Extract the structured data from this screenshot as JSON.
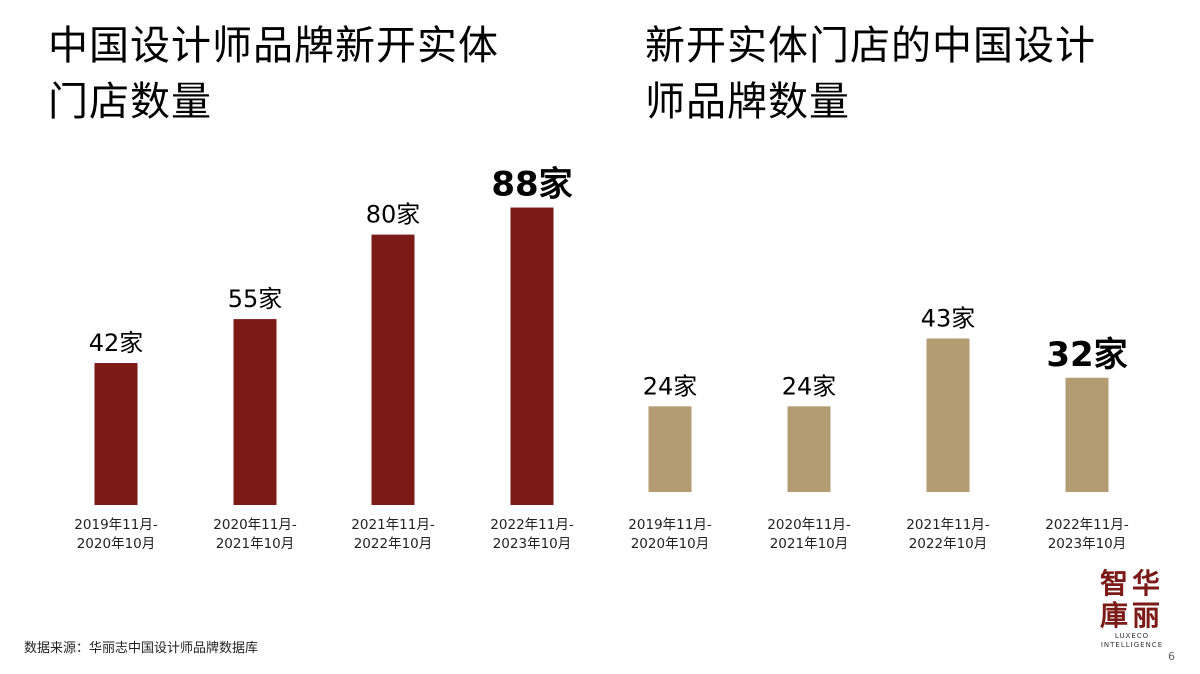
{
  "source_text": "数据来源：华丽志中国设计师品牌数据库",
  "logo": {
    "cn_line1": "智华",
    "cn_line2": "庫丽",
    "en_line1": "LUXECO",
    "en_line2": "INTELLIGENCE"
  },
  "page_number": "6",
  "chart_data": [
    {
      "type": "bar",
      "title": "中国设计师品牌新开实体门店数量",
      "title_lines": [
        "中国设计师品牌新开实体",
        "门店数量"
      ],
      "categories": [
        "2019年11月-\n2020年10月",
        "2020年11月-\n2021年10月",
        "2021年11月-\n2022年10月",
        "2022年11月-\n2023年10月"
      ],
      "category_lines": [
        [
          "2019年11月-",
          "2020年10月"
        ],
        [
          "2020年11月-",
          "2021年10月"
        ],
        [
          "2021年11月-",
          "2022年10月"
        ],
        [
          "2022年11月-",
          "2023年10月"
        ]
      ],
      "values": [
        42,
        55,
        80,
        88
      ],
      "data_labels": [
        "42家",
        "55家",
        "80家",
        "88家"
      ],
      "highlight_index": 3,
      "color": "#7b1a17",
      "ylim": [
        0,
        100
      ],
      "grid": false,
      "legend": "none"
    },
    {
      "type": "bar",
      "title": "新开实体门店的中国设计师品牌数量",
      "title_lines": [
        "新开实体门店的中国设计",
        "师品牌数量"
      ],
      "categories": [
        "2019年11月-\n2020年10月",
        "2020年11月-\n2021年10月",
        "2021年11月-\n2022年10月",
        "2022年11月-\n2023年10月"
      ],
      "category_lines": [
        [
          "2019年11月-",
          "2020年10月"
        ],
        [
          "2020年11月-",
          "2021年10月"
        ],
        [
          "2021年11月-",
          "2022年10月"
        ],
        [
          "2022年11月-",
          "2023年10月"
        ]
      ],
      "values": [
        24,
        24,
        43,
        32
      ],
      "data_labels": [
        "24家",
        "24家",
        "43家",
        "32家"
      ],
      "highlight_index": 3,
      "color": "#b39c72",
      "ylim": [
        0,
        100
      ],
      "grid": false,
      "legend": "none"
    }
  ]
}
